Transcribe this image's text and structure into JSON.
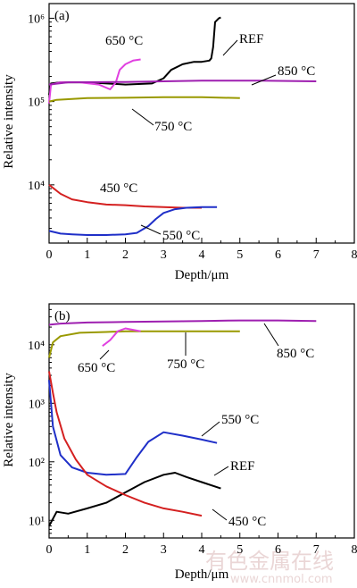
{
  "panels": [
    {
      "panel_label": "(a)",
      "annotations": [
        "650 °C",
        "REF",
        "850 °C",
        "750 °C",
        "450 °C",
        "550 °C"
      ]
    },
    {
      "panel_label": "(b)",
      "annotations": [
        "650 °C",
        "750 °C",
        "850 °C",
        "550 °C",
        "REF",
        "450 °C"
      ]
    }
  ],
  "watermark": {
    "text": "有色金属在线",
    "url": "www.cnnmol.com"
  },
  "chart_data": [
    {
      "type": "line",
      "title": "(a)",
      "xlabel": "Depth/μm",
      "ylabel": "Relative intensity",
      "xlim": [
        0,
        8
      ],
      "ylim": [
        2000,
        1500000
      ],
      "yscale": "log",
      "x_ticks": [
        "0",
        "1",
        "2",
        "3",
        "4",
        "5",
        "6",
        "7",
        "8"
      ],
      "y_ticks": [
        "10⁴",
        "10⁵",
        "10⁶"
      ],
      "grid": false,
      "series": [
        {
          "name": "REF",
          "color": "#000000",
          "x": [
            0,
            0.05,
            0.3,
            1.0,
            2.0,
            2.7,
            3.0,
            3.2,
            3.5,
            3.8,
            4.0,
            4.2,
            4.25,
            4.3,
            4.35,
            4.45,
            4.5
          ],
          "y": [
            120000,
            165000,
            170000,
            170000,
            160000,
            165000,
            190000,
            240000,
            280000,
            300000,
            300000,
            310000,
            330000,
            450000,
            900000,
            1000000,
            1020000
          ]
        },
        {
          "name": "650 °C",
          "color": "#e040e0",
          "x": [
            0,
            0.05,
            0.3,
            0.8,
            1.3,
            1.6,
            1.75,
            1.85,
            2.0,
            2.2,
            2.4
          ],
          "y": [
            95000,
            160000,
            170000,
            170000,
            160000,
            140000,
            170000,
            240000,
            280000,
            310000,
            320000
          ]
        },
        {
          "name": "850 °C",
          "color": "#9e1fb0",
          "x": [
            0,
            0.5,
            2,
            4,
            5.5,
            7
          ],
          "y": [
            160000,
            170000,
            172000,
            178000,
            178000,
            175000
          ]
        },
        {
          "name": "750 °C",
          "color": "#999900",
          "x": [
            0,
            0.2,
            1,
            2,
            3,
            4,
            5
          ],
          "y": [
            100000,
            105000,
            110000,
            111000,
            113000,
            113000,
            110000
          ]
        },
        {
          "name": "450 °C",
          "color": "#d42020",
          "x": [
            0,
            0.3,
            0.6,
            1,
            1.5,
            2,
            2.5,
            3,
            3.5,
            4
          ],
          "y": [
            10000,
            7800,
            6700,
            6200,
            5800,
            5700,
            5500,
            5400,
            5300,
            5300
          ]
        },
        {
          "name": "550 °C",
          "color": "#1f2fc8",
          "x": [
            0,
            0.3,
            0.6,
            1,
            1.5,
            2,
            2.3,
            2.6,
            2.8,
            3,
            3.3,
            3.6,
            4,
            4.4
          ],
          "y": [
            2800,
            2600,
            2550,
            2500,
            2500,
            2550,
            2650,
            3200,
            3900,
            4600,
            5100,
            5300,
            5400,
            5400
          ]
        }
      ]
    },
    {
      "type": "line",
      "title": "(b)",
      "xlabel": "Depth/μm",
      "ylabel": "Relative intensity",
      "xlim": [
        0,
        8
      ],
      "ylim": [
        5,
        50000
      ],
      "yscale": "log",
      "x_ticks": [
        "0",
        "1",
        "2",
        "3",
        "4",
        "5",
        "6",
        "7",
        "8"
      ],
      "y_ticks": [
        "10¹",
        "10²",
        "10³",
        "10⁴"
      ],
      "grid": false,
      "series": [
        {
          "name": "850 °C",
          "color": "#9e1fb0",
          "x": [
            0,
            0.3,
            1,
            2,
            3,
            4,
            5,
            6,
            7
          ],
          "y": [
            22000,
            23000,
            24000,
            24500,
            25000,
            25500,
            26000,
            26000,
            25500
          ]
        },
        {
          "name": "750 °C",
          "color": "#999900",
          "x": [
            0,
            0.1,
            0.3,
            0.8,
            1.5,
            2,
            3,
            4,
            5
          ],
          "y": [
            6000,
            11000,
            14000,
            16000,
            16500,
            17000,
            17000,
            17000,
            17000
          ]
        },
        {
          "name": "650 °C",
          "color": "#e040e0",
          "x": [
            1.4,
            1.6,
            1.8,
            2.0,
            2.2,
            2.4
          ],
          "y": [
            9500,
            12000,
            17000,
            19000,
            18000,
            17000
          ]
        },
        {
          "name": "550 °C",
          "color": "#1f2fc8",
          "x": [
            0,
            0.1,
            0.3,
            0.6,
            1.0,
            1.5,
            2.0,
            2.3,
            2.6,
            3.0,
            3.5,
            4.0,
            4.4
          ],
          "y": [
            2500,
            400,
            130,
            80,
            65,
            60,
            62,
            120,
            220,
            320,
            280,
            240,
            210
          ]
        },
        {
          "name": "REF",
          "color": "#000000",
          "x": [
            0,
            0.2,
            0.5,
            1.0,
            1.5,
            2.0,
            2.5,
            3.0,
            3.3,
            3.6,
            4.0,
            4.5
          ],
          "y": [
            8,
            14,
            13,
            16,
            20,
            30,
            45,
            60,
            65,
            55,
            45,
            35
          ]
        },
        {
          "name": "450 °C",
          "color": "#d42020",
          "x": [
            0,
            0.1,
            0.2,
            0.4,
            0.7,
            1.0,
            1.5,
            2.0,
            2.5,
            3.0,
            3.5,
            4.0
          ],
          "y": [
            3500,
            1500,
            700,
            250,
            110,
            60,
            38,
            27,
            20,
            16,
            14,
            12
          ]
        }
      ]
    }
  ]
}
